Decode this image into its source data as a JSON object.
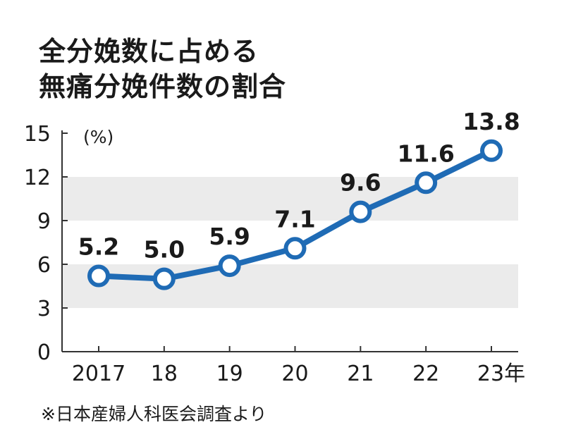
{
  "title_lines": [
    "全分娩数に占める",
    "無痛分娩件数の割合"
  ],
  "source": "※日本産婦人科医会調査より",
  "colors": {
    "line": "#1f6bb5",
    "band": "#ebebeb",
    "axis": "#333333",
    "text": "#1a1a1a"
  },
  "chart_data": {
    "type": "line",
    "title": "全分娩数に占める無痛分娩件数の割合",
    "unit_label": "(%)",
    "categories": [
      "2017",
      "18",
      "19",
      "20",
      "21",
      "22",
      "23年"
    ],
    "series": [
      {
        "values": [
          5.2,
          5.0,
          5.9,
          7.1,
          9.6,
          11.6,
          13.8
        ],
        "labels": [
          "5.2",
          "5.0",
          "5.9",
          "7.1",
          "9.6",
          "11.6",
          "13.8"
        ]
      }
    ],
    "y_ticks": [
      "0",
      "3",
      "6",
      "9",
      "12",
      "15"
    ],
    "ylim": [
      0,
      15
    ],
    "shaded_bands": [
      [
        3,
        6
      ],
      [
        9,
        12
      ]
    ],
    "grid": false,
    "legend": "none"
  }
}
